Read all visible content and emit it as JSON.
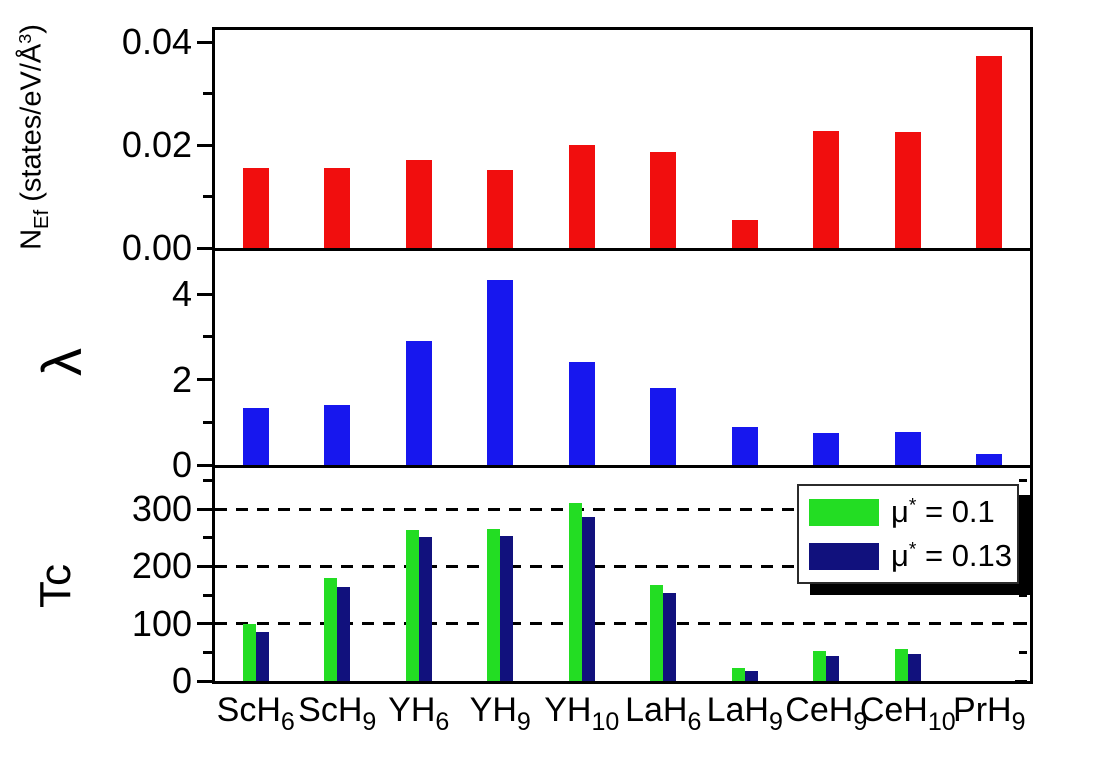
{
  "figure": {
    "background": "#ffffff"
  },
  "chart_data": {
    "type": "bar",
    "layout": "three vertically stacked panels sharing one categorical x-axis, legend top-right of bottom panel, grid off except dashed lines in bottom panel",
    "categories_plain": [
      "ScH6",
      "ScH9",
      "YH6",
      "YH9",
      "YH10",
      "LaH6",
      "LaH9",
      "CeH9",
      "CeH10",
      "PrH9"
    ],
    "categories": [
      [
        {
          "t": "text",
          "s": "ScH"
        },
        {
          "t": "sub",
          "s": "6"
        }
      ],
      [
        {
          "t": "text",
          "s": "ScH"
        },
        {
          "t": "sub",
          "s": "9"
        }
      ],
      [
        {
          "t": "text",
          "s": "YH"
        },
        {
          "t": "sub",
          "s": "6"
        }
      ],
      [
        {
          "t": "text",
          "s": "YH"
        },
        {
          "t": "sub",
          "s": "9"
        }
      ],
      [
        {
          "t": "text",
          "s": "YH"
        },
        {
          "t": "sub",
          "s": "10"
        }
      ],
      [
        {
          "t": "text",
          "s": "LaH"
        },
        {
          "t": "sub",
          "s": "6"
        }
      ],
      [
        {
          "t": "text",
          "s": "LaH"
        },
        {
          "t": "sub",
          "s": "9"
        }
      ],
      [
        {
          "t": "text",
          "s": "CeH"
        },
        {
          "t": "sub",
          "s": "9"
        }
      ],
      [
        {
          "t": "text",
          "s": "CeH"
        },
        {
          "t": "sub",
          "s": "10"
        }
      ],
      [
        {
          "t": "text",
          "s": "PrH"
        },
        {
          "t": "sub",
          "s": "9"
        }
      ]
    ],
    "panels": [
      {
        "id": "nef",
        "ylabel_plain": "N_Ef (states/eV/Å^3)",
        "ylabel": [
          {
            "t": "text",
            "s": "N"
          },
          {
            "t": "sub",
            "s": "Ef"
          },
          {
            "t": "text",
            "s": " (states/eV/Å"
          },
          {
            "t": "sup",
            "s": "3"
          },
          {
            "t": "text",
            "s": ")"
          }
        ],
        "bar_color": "#f10e0e",
        "ylim": [
          0,
          0.0424
        ],
        "yticks": [
          {
            "v": 0,
            "label": "0.00"
          },
          {
            "v": 0.02,
            "label": "0.02"
          },
          {
            "v": 0.04,
            "label": "0.04"
          }
        ],
        "yminor": [
          0.01,
          0.03
        ],
        "values": [
          0.0155,
          0.0156,
          0.0172,
          0.0151,
          0.02,
          0.0186,
          0.0054,
          0.0228,
          0.0226,
          0.0373
        ]
      },
      {
        "id": "lambda",
        "ylabel_plain": "λ",
        "ylabel": [
          {
            "t": "text",
            "s": "λ"
          }
        ],
        "bar_color": "#1717ee",
        "ylim": [
          0,
          5.08
        ],
        "yticks": [
          {
            "v": 0,
            "label": "0"
          },
          {
            "v": 2,
            "label": "2"
          },
          {
            "v": 4,
            "label": "4"
          }
        ],
        "yminor": [
          1,
          3
        ],
        "values": [
          1.33,
          1.4,
          2.9,
          4.32,
          2.4,
          1.8,
          0.88,
          0.76,
          0.78,
          0.25
        ]
      },
      {
        "id": "tc",
        "ylabel_plain": "Tc",
        "ylabel": [
          {
            "t": "text",
            "s": "Tc"
          }
        ],
        "ylim": [
          0,
          377
        ],
        "yticks": [
          {
            "v": 0,
            "label": "0"
          },
          {
            "v": 100,
            "label": "100"
          },
          {
            "v": 200,
            "label": "200"
          },
          {
            "v": 300,
            "label": "300"
          }
        ],
        "yminor": [
          50,
          150,
          250,
          350
        ],
        "gridlines": [
          100,
          200,
          300
        ],
        "series": [
          {
            "name_plain": "μ* = 0.1",
            "color": "#23dd23",
            "values": [
              100,
              180,
              264,
              266,
              310,
              168,
              23,
              52,
              56,
              null
            ]
          },
          {
            "name_plain": "μ* = 0.13",
            "color": "#11117d",
            "values": [
              85,
              164,
              251,
              253,
              287,
              154,
              17,
              43,
              47,
              null
            ]
          }
        ],
        "legend": {
          "position": "top-right",
          "entries": [
            {
              "color": "#23dd23",
              "label_plain": "μ* = 0.1",
              "label": [
                {
                  "t": "text",
                  "s": "μ"
                },
                {
                  "t": "sup",
                  "s": "*"
                },
                {
                  "t": "text",
                  "s": " = 0.1"
                }
              ]
            },
            {
              "color": "#11117d",
              "label_plain": "μ* = 0.13",
              "label": [
                {
                  "t": "text",
                  "s": "μ"
                },
                {
                  "t": "sup",
                  "s": "*"
                },
                {
                  "t": "text",
                  "s": " = 0.13"
                }
              ]
            }
          ]
        }
      }
    ]
  }
}
